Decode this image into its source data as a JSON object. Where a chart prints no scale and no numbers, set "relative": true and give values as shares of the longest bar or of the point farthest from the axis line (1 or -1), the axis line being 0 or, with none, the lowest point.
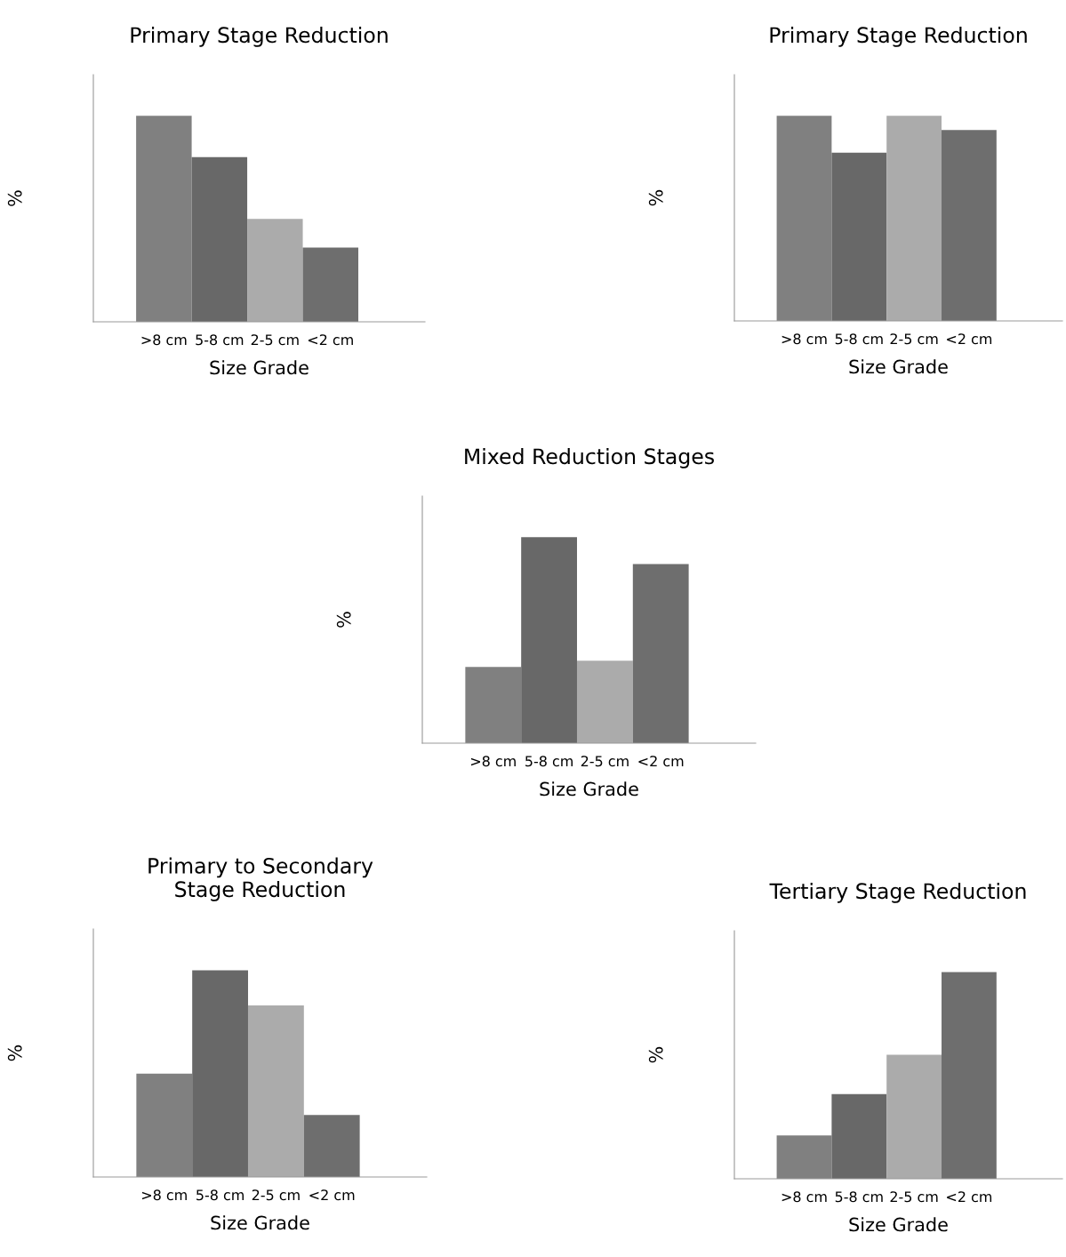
{
  "chart_data": [
    {
      "type": "bar",
      "title": "Primary Stage Reduction",
      "xlabel": "Size Grade",
      "ylabel": "%",
      "relative": true,
      "categories": [
        ">8 cm",
        "5-8 cm",
        "2-5 cm",
        "<2 cm"
      ],
      "values": [
        1,
        0.8,
        0.5,
        0.36
      ],
      "colors": [
        "#808080",
        "#686868",
        "#ababab",
        "#6e6e6e"
      ],
      "grid": false,
      "legend": false
    },
    {
      "type": "bar",
      "title": "Primary Stage Reduction",
      "xlabel": "Size Grade",
      "ylabel": "%",
      "relative": true,
      "categories": [
        ">8 cm",
        "5-8 cm",
        "2-5 cm",
        "<2 cm"
      ],
      "values": [
        1,
        0.82,
        1,
        0.93
      ],
      "colors": [
        "#808080",
        "#686868",
        "#ababab",
        "#6e6e6e"
      ],
      "grid": false,
      "legend": false
    },
    {
      "type": "bar",
      "title": "Mixed Reduction Stages",
      "xlabel": "Size Grade",
      "ylabel": "%",
      "relative": true,
      "categories": [
        ">8 cm",
        "5-8 cm",
        "2-5 cm",
        "<2 cm"
      ],
      "values": [
        0.37,
        1,
        0.4,
        0.87
      ],
      "colors": [
        "#808080",
        "#686868",
        "#ababab",
        "#6e6e6e"
      ],
      "grid": false,
      "legend": false
    },
    {
      "type": "bar",
      "title": "Primary to Secondary\nStage Reduction",
      "xlabel": "Size Grade",
      "ylabel": "%",
      "relative": true,
      "categories": [
        ">8 cm",
        "5-8 cm",
        "2-5 cm",
        "<2 cm"
      ],
      "values": [
        0.5,
        1,
        0.83,
        0.3
      ],
      "colors": [
        "#808080",
        "#686868",
        "#ababab",
        "#6e6e6e"
      ],
      "grid": false,
      "legend": false
    },
    {
      "type": "bar",
      "title": "Tertiary Stage Reduction",
      "xlabel": "Size Grade",
      "ylabel": "%",
      "relative": true,
      "categories": [
        ">8 cm",
        "5-8 cm",
        "2-5 cm",
        "<2 cm"
      ],
      "values": [
        0.21,
        0.41,
        0.6,
        1
      ],
      "colors": [
        "#808080",
        "#686868",
        "#ababab",
        "#6e6e6e"
      ],
      "grid": false,
      "legend": false
    }
  ]
}
